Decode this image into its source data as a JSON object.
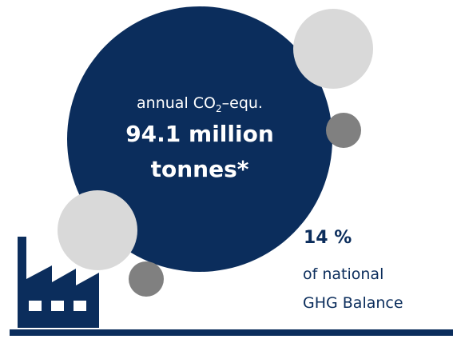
{
  "emission": {
    "label_prefix": "annual CO",
    "label_subscript": "2",
    "label_suffix": "–equ.",
    "value_line1": "94.1 million",
    "value_line2": "tonnes*"
  },
  "share": {
    "percent": "14 %",
    "line1": "of national",
    "line2": "GHG Balance"
  },
  "icons": {
    "factory": "factory-icon"
  },
  "colors": {
    "navy": "#0b2d5c",
    "light_grey": "#d9d9d9",
    "dark_grey": "#808080",
    "background": "#ffffff"
  }
}
